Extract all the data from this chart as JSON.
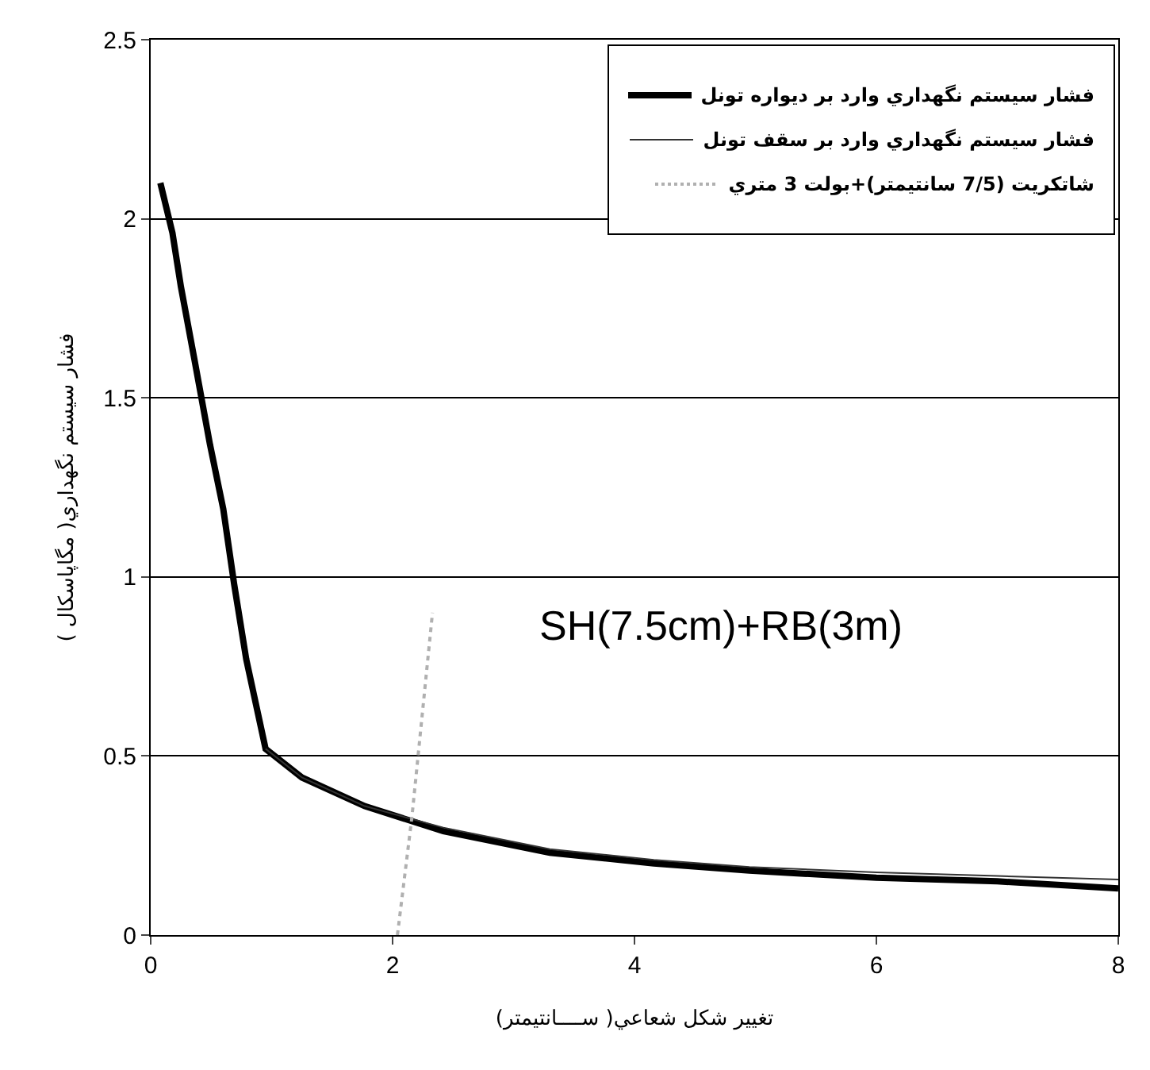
{
  "chart_data": {
    "type": "line",
    "xlabel": "تغيير شكل شعاعي( ســــانتيمتر)",
    "ylabel": "فشار سيستم نگهداري( مگاپاسكال )",
    "xlim": [
      0,
      8
    ],
    "xticks": [
      0,
      2,
      4,
      6,
      8
    ],
    "ylim": [
      0,
      2.5
    ],
    "yticks": [
      0,
      0.5,
      1,
      1.5,
      2,
      2.5
    ],
    "grid": "y",
    "legend": "top right",
    "marker": "none",
    "annotations": [
      "SH(7.5cm)+RB(3m)"
    ],
    "series": [
      {
        "name": "فشار سيستم نگهداري وارد بر ديواره تونل",
        "color": "#000000",
        "line_style": "solid",
        "x": [
          0.08,
          0.18,
          0.25,
          0.36,
          0.49,
          0.6,
          0.69,
          0.79,
          0.95,
          1.25,
          1.77,
          2.42,
          3.3,
          4.16,
          4.95,
          6,
          7,
          8
        ],
        "values": [
          2.1,
          1.96,
          1.81,
          1.61,
          1.37,
          1.19,
          0.98,
          0.77,
          0.52,
          0.44,
          0.36,
          0.29,
          0.23,
          0.2,
          0.18,
          0.16,
          0.15,
          0.13
        ]
      },
      {
        "name": "فشار سيستم نگهداري وارد بر سقف تونل",
        "color": "#333333",
        "line_style": "solid",
        "x": [
          0.95,
          1.25,
          1.77,
          2.42,
          3.3,
          4.16,
          4.95,
          6,
          7,
          8
        ],
        "values": [
          0.52,
          0.44,
          0.36,
          0.3,
          0.24,
          0.21,
          0.19,
          0.175,
          0.165,
          0.155
        ]
      },
      {
        "name": "شاتكريت (7/5 سانتيمتر)+بولت 3 متري",
        "color": "#b0b0b0",
        "line_style": "dotted",
        "x": [
          2.04,
          2.16,
          2.33
        ],
        "values": [
          0,
          0.33,
          0.9
        ]
      }
    ]
  }
}
